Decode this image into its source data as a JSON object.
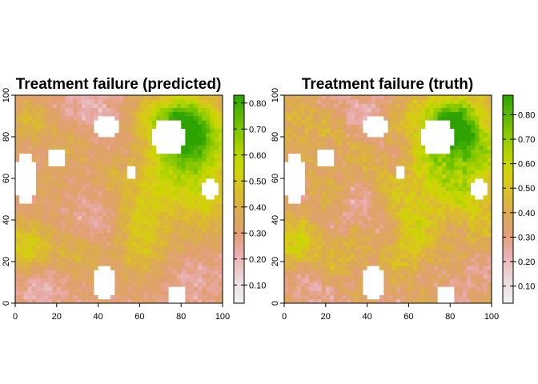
{
  "colors": {
    "ramp": [
      "#f2f2f2",
      "#eee2e2",
      "#ebc9c9",
      "#e8aaaa",
      "#e39f74",
      "#dba85b",
      "#dcb637",
      "#d8c919",
      "#cbd800",
      "#a6d100",
      "#7ec600",
      "#54b600",
      "#2da300"
    ],
    "missing": "#ffffff"
  },
  "chart_data": [
    {
      "type": "heatmap",
      "title": "Treatment failure (predicted)",
      "xlabel": "",
      "ylabel": "",
      "xlim": [
        0,
        100
      ],
      "ylim": [
        0,
        100
      ],
      "x_ticks": [
        "0",
        "20",
        "40",
        "60",
        "80",
        "100"
      ],
      "y_ticks": [
        "0",
        "20",
        "40",
        "60",
        "80",
        "100"
      ],
      "value_range": [
        0.03,
        0.83
      ],
      "legend_ticks": [
        "0.10",
        "0.20",
        "0.30",
        "0.40",
        "0.50",
        "0.60",
        "0.70",
        "0.80"
      ],
      "legend_values": [
        0.1,
        0.2,
        0.3,
        0.4,
        0.5,
        0.6,
        0.7,
        0.8
      ],
      "legend_position": "right",
      "grid": false
    },
    {
      "type": "heatmap",
      "title": "Treatment failure (truth)",
      "xlabel": "",
      "ylabel": "",
      "xlim": [
        0,
        100
      ],
      "ylim": [
        0,
        100
      ],
      "x_ticks": [
        "0",
        "20",
        "40",
        "60",
        "80",
        "100"
      ],
      "y_ticks": [
        "0",
        "20",
        "40",
        "60",
        "80",
        "100"
      ],
      "value_range": [
        0.03,
        0.88
      ],
      "legend_ticks": [
        "0.10",
        "0.20",
        "0.30",
        "0.40",
        "0.50",
        "0.60",
        "0.70",
        "0.80"
      ],
      "legend_values": [
        0.1,
        0.2,
        0.3,
        0.4,
        0.5,
        0.6,
        0.7,
        0.8
      ],
      "legend_position": "right",
      "grid": false
    }
  ]
}
